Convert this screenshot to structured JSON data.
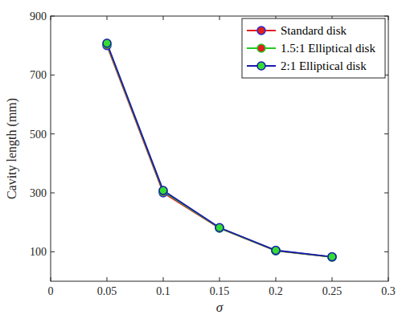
{
  "chart_data": {
    "type": "line",
    "x_label": "σ",
    "y_label": "Cavity length (mm)",
    "x": [
      0.05,
      0.1,
      0.15,
      0.2,
      0.25
    ],
    "series": [
      {
        "name": "Standard disk",
        "color": "#e02020",
        "marker": "circle",
        "values": [
          800,
          300,
          180,
          103,
          82
        ]
      },
      {
        "name": "1.5:1 Elliptical disk",
        "color": "#22cc22",
        "marker": "circle",
        "values": [
          805,
          305,
          181,
          104,
          82
        ]
      },
      {
        "name": "2:1 Elliptical disk",
        "color": "#1a1aaa",
        "marker": "circle",
        "values": [
          808,
          308,
          182,
          105,
          83
        ]
      }
    ],
    "xlim": [
      0,
      0.3
    ],
    "xticks": [
      0,
      0.05,
      0.1,
      0.15,
      0.2,
      0.25,
      0.3
    ],
    "ylim": [
      0,
      900
    ],
    "yticks": [
      100,
      300,
      500,
      700,
      900
    ],
    "grid": false,
    "legend": "upper right"
  }
}
